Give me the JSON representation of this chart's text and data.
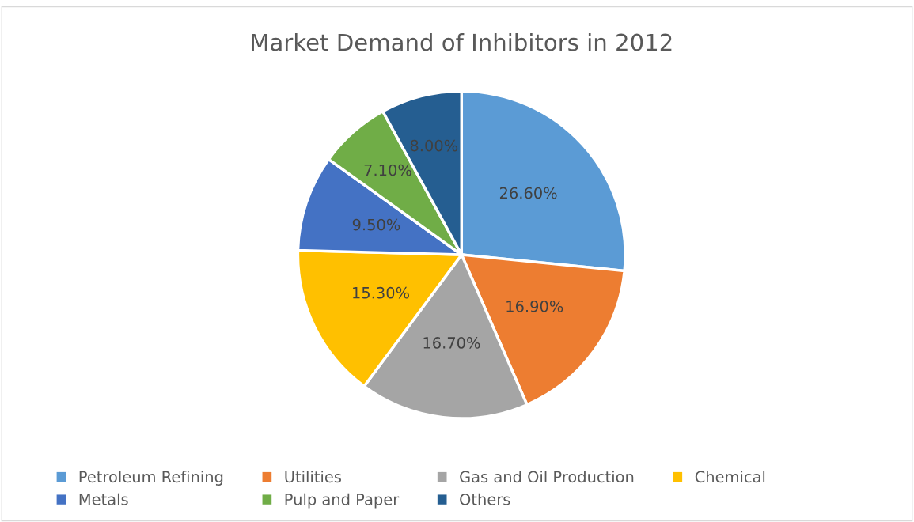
{
  "chart_data": {
    "type": "pie",
    "title": "Market Demand of Inhibitors in 2012",
    "categories": [
      "Petroleum Refining",
      "Utilities",
      "Gas and Oil Production",
      "Chemical",
      "Metals",
      "Pulp and Paper",
      "Others"
    ],
    "values": [
      26.6,
      16.9,
      16.7,
      15.3,
      9.5,
      7.1,
      8.0
    ],
    "colors": [
      "#5b9bd5",
      "#ed7d31",
      "#a5a5a5",
      "#ffc000",
      "#4472c4",
      "#70ad47",
      "#255e91"
    ],
    "value_labels": [
      "26.60%",
      "16.90%",
      "16.70%",
      "15.30%",
      "9.50%",
      "7.10%",
      "8.00%"
    ],
    "legend": "bottom"
  }
}
